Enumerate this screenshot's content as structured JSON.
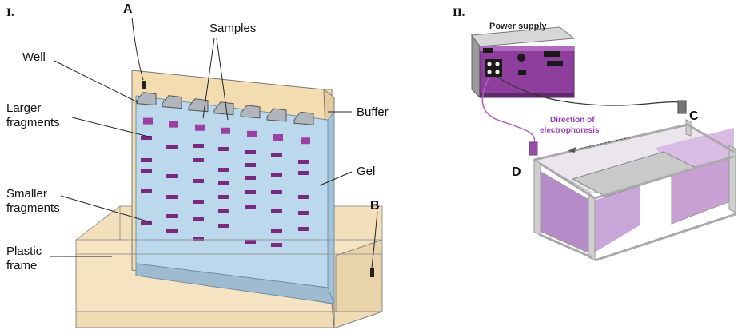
{
  "panel_I": {
    "roman": "I.",
    "labels": {
      "A": "A",
      "B": "B",
      "samples": "Samples",
      "well": "Well",
      "larger_1": "Larger",
      "larger_2": "fragments",
      "buffer": "Buffer",
      "gel": "Gel",
      "smaller_1": "Smaller",
      "smaller_2": "fragments",
      "frame_1": "Plastic",
      "frame_2": "frame"
    },
    "colors": {
      "gel": "#bcd8ec",
      "buffer": "#f2dcb0",
      "band": "#7a2a7e",
      "sample": "#9b3fa3"
    }
  },
  "panel_II": {
    "roman": "II.",
    "labels": {
      "power_supply": "Power supply",
      "direction_1": "Direction of",
      "direction_2": "electrophoresis",
      "C": "C",
      "D": "D"
    },
    "colors": {
      "device": "#8e3f9e",
      "buffer": "#c9a0d4",
      "frame": "#c8c8c8"
    }
  }
}
